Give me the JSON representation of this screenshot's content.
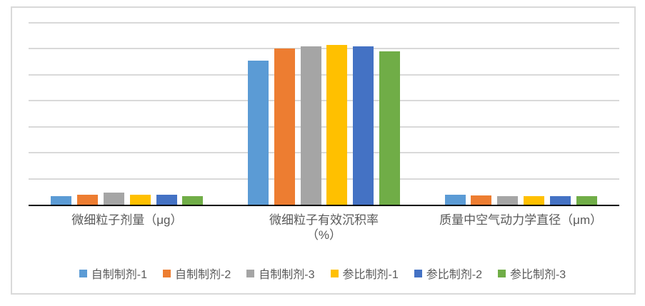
{
  "chart_data": {
    "type": "bar",
    "title": "",
    "xlabel": "",
    "ylabel": "",
    "categories": [
      "微细粒子剂量（μg）",
      "微细粒子有效沉积率（%）",
      "质量中空气动力学直径（μm）"
    ],
    "category_label_lines": [
      [
        "微细粒子剂量（μg）"
      ],
      [
        "微细粒子有效沉积率",
        "（%）"
      ],
      [
        "质量中空气动力学直径（μm）"
      ]
    ],
    "series": [
      {
        "name": "自制制剂-1",
        "color": "#5B9BD5",
        "values": [
          3.3,
          55.5,
          3.8
        ]
      },
      {
        "name": "自制制剂-2",
        "color": "#ED7D31",
        "values": [
          3.9,
          60.0,
          3.6
        ]
      },
      {
        "name": "自制制剂-3",
        "color": "#A5A5A5",
        "values": [
          4.7,
          61.0,
          3.4
        ]
      },
      {
        "name": "参比制剂-1",
        "color": "#FFC000",
        "values": [
          3.8,
          61.5,
          3.4
        ]
      },
      {
        "name": "参比制剂-2",
        "color": "#4472C4",
        "values": [
          3.8,
          61.0,
          3.2
        ]
      },
      {
        "name": "参比制剂-3",
        "color": "#70AD47",
        "values": [
          3.3,
          59.0,
          3.4
        ]
      }
    ],
    "ylim": [
      0,
      70
    ],
    "gridline_interval": 10,
    "y_axis_tick_labels": "none",
    "grid": true,
    "legend_position": "bottom"
  },
  "style": {
    "background": "#FFFFFF",
    "frame_border": "#D9D9D9",
    "gridline_color": "#D9D9D9",
    "axis_color": "#000000",
    "text_color": "#595959"
  }
}
